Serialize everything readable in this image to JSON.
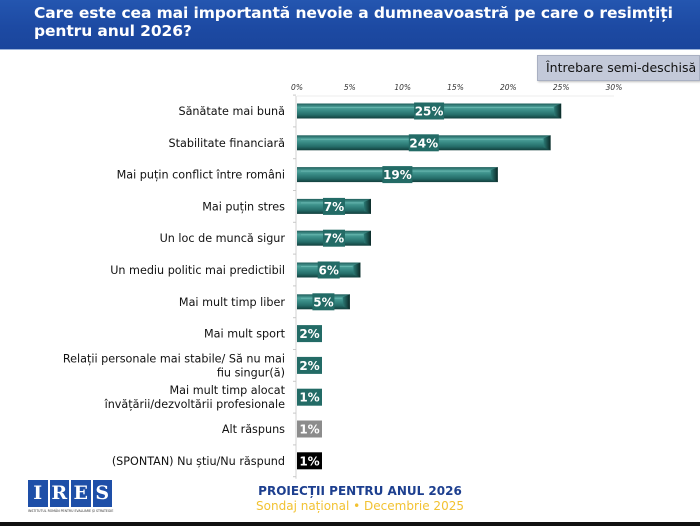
{
  "header": {
    "title": "Care este cea mai importantă nevoie a dumneavoastră pe care o resimțiți pentru anul 2026?"
  },
  "badge": {
    "label": "Întrebare semi-deschisă"
  },
  "colors": {
    "header_bg": "#1d4aa3",
    "bar_main": "#2a7a76",
    "bar_other": "#8a8a8a",
    "bar_dontknow": "#000000",
    "footer_title": "#1d3f8f",
    "footer_sub": "#f2c232"
  },
  "chart_data": {
    "type": "bar",
    "orientation": "horizontal",
    "title": "Care este cea mai importantă nevoie a dumneavoastră pe care o resimțiți pentru anul 2026?",
    "xlabel": "",
    "ylabel": "",
    "xlim": [
      0,
      30
    ],
    "x_ticks": [
      "0%",
      "5%",
      "10%",
      "15%",
      "20%",
      "25%",
      "30%"
    ],
    "x_tick_values": [
      0,
      5,
      10,
      15,
      20,
      25,
      30
    ],
    "x_axis_position": "top",
    "grid": false,
    "legend": "none",
    "categories": [
      "Sănătate mai bună",
      "Stabilitate financiară",
      "Mai puțin conflict între români",
      "Mai puțin stres",
      "Un loc de muncă sigur",
      "Un mediu politic mai predictibil",
      "Mai mult timp liber",
      "Mai mult sport",
      "Relații personale mai stabile/ Să nu mai fiu singur(ă)",
      "Mai mult timp alocat învățării/dezvoltării profesionale",
      "Alt răspuns",
      "(SPONTAN) Nu știu/Nu răspund"
    ],
    "values": [
      25,
      24,
      19,
      7,
      7,
      6,
      5,
      2,
      2,
      1,
      1,
      1
    ],
    "value_labels": [
      "25%",
      "24%",
      "19%",
      "7%",
      "7%",
      "6%",
      "5%",
      "2%",
      "2%",
      "1%",
      "1%",
      "1%"
    ],
    "bar_kinds": [
      "main",
      "main",
      "main",
      "main",
      "main",
      "main",
      "main",
      "main",
      "main",
      "main",
      "other",
      "dontknow"
    ],
    "units": "%"
  },
  "footer": {
    "logo_letters": [
      "I",
      "R",
      "E",
      "S"
    ],
    "logo_tagline": "INSTITUTUL ROMÂN PENTRU EVALUARE ȘI STRATEGIE",
    "title": "PROIECȚII PENTRU ANUL 2026",
    "subtitle": "Sondaj național • Decembrie 2025"
  }
}
